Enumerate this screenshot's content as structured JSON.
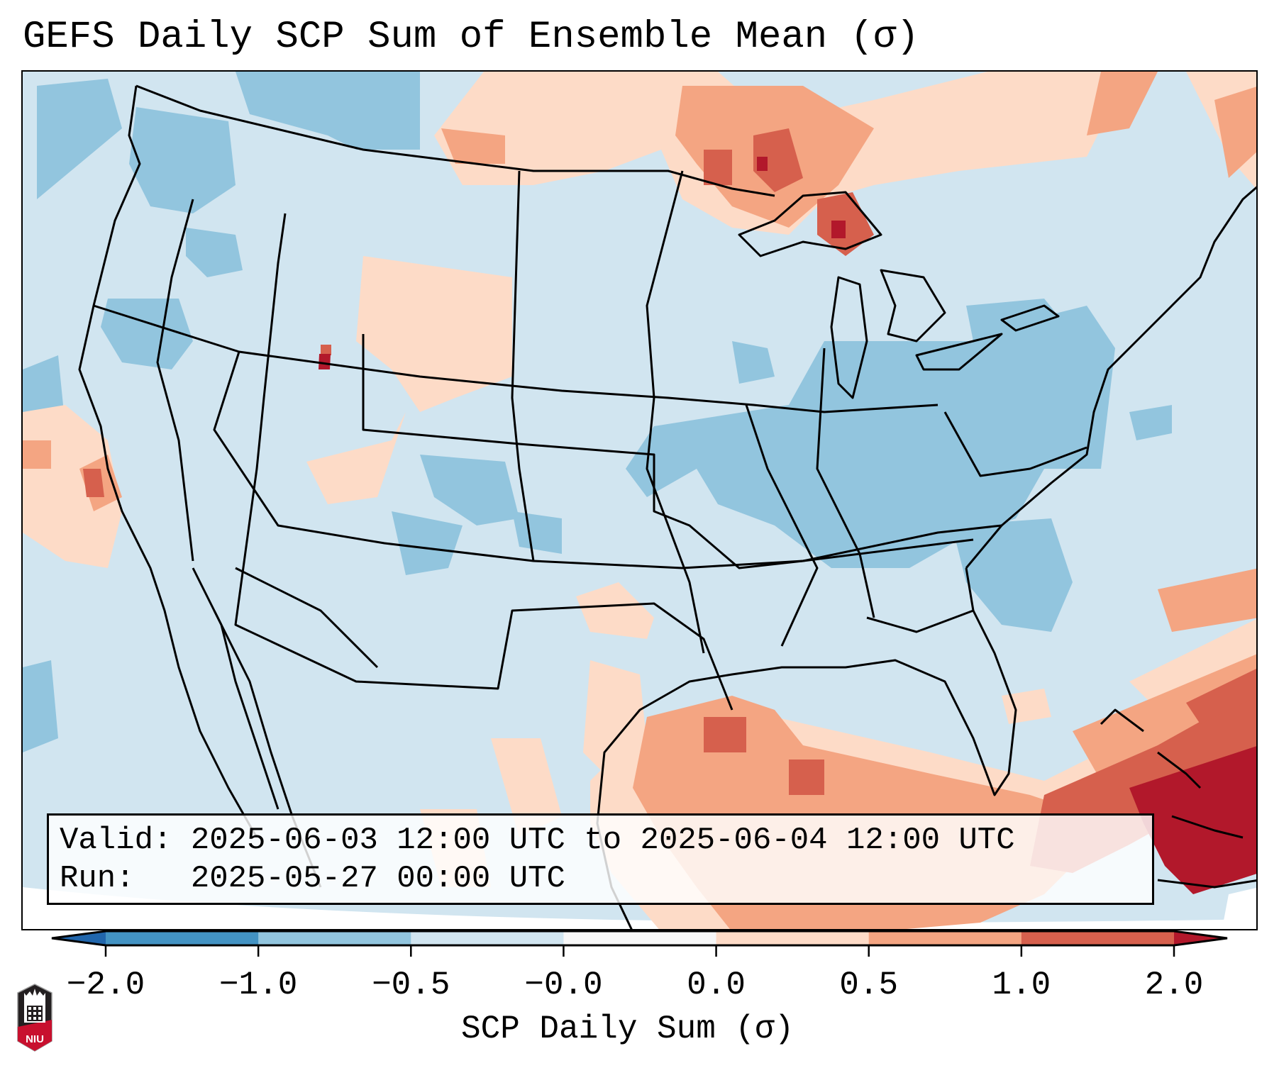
{
  "title": "GEFS Daily SCP Sum of Ensemble Mean (σ)",
  "info_box": {
    "valid_line": "Valid: 2025-06-03 12:00 UTC to 2025-06-04 12:00 UTC",
    "run_line": "Run:   2025-05-27 00:00 UTC"
  },
  "logo": {
    "text": "NIU",
    "icon": "niu-logo-icon"
  },
  "colors": {
    "bin_colors": [
      "#2166ac",
      "#4393c3",
      "#92c5de",
      "#d1e5f0",
      "#f7f7f7",
      "#fddbc7",
      "#f4a582",
      "#d6604d",
      "#b2182b"
    ],
    "land_outline": "#000000"
  },
  "chart_data": {
    "type": "heatmap",
    "title": "GEFS Daily SCP Sum of Ensemble Mean (σ)",
    "xlabel": "",
    "ylabel": "",
    "colorbar": {
      "label": "SCP Daily Sum (σ)",
      "tick_values": [
        -2.0,
        -1.0,
        -0.5,
        -0.0,
        0.0,
        0.5,
        1.0,
        2.0
      ],
      "tick_labels": [
        "−2.0",
        "−1.0",
        "−0.5",
        "−0.0",
        "0.0",
        "0.5",
        "1.0",
        "2.0"
      ],
      "extend": "both",
      "orientation": "horizontal",
      "placement": "bottom"
    },
    "region": "Contiguous United States with surrounding Canada, Mexico, Gulf of Mexico and Caribbean",
    "regions_summary": [
      {
        "area": "Central Canada / Lake Superior",
        "category": "0.5 to 2.0 (positive)"
      },
      {
        "area": "Gulf of Mexico",
        "category": "0.5 to 1.0"
      },
      {
        "area": "Bahamas / Caribbean",
        "category": "1.0 to >2.0"
      },
      {
        "area": "Central Utah spot",
        "category": ">2.0"
      },
      {
        "area": "Midwest / Ohio Valley / Southeast",
        "category": "-1.0 to -0.5"
      },
      {
        "area": "Most of CONUS",
        "category": "-0.5 to -0.0"
      },
      {
        "area": "Wyoming / Montana / Colorado plains",
        "category": "0.0 to 0.5"
      }
    ],
    "legend_placement": "bottom"
  }
}
